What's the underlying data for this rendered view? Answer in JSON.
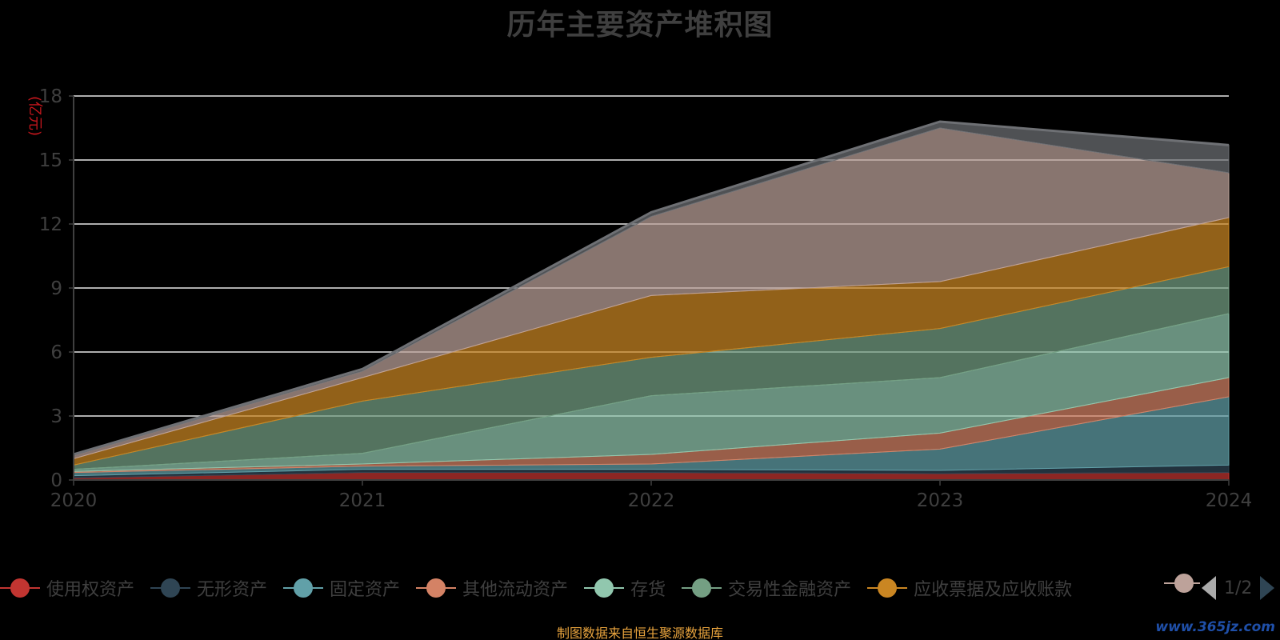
{
  "chart_data": {
    "type": "area",
    "stacked": true,
    "title": "历年主要资产堆积图",
    "ylabel": "(亿元)",
    "x": [
      "2020",
      "2021",
      "2022",
      "2023",
      "2024"
    ],
    "ylim": [
      0,
      18
    ],
    "yticks": [
      "0",
      "3",
      "6",
      "9",
      "12",
      "15",
      "18"
    ],
    "grid": true,
    "legend_position": "bottom",
    "series": [
      {
        "name": "使用权资产",
        "color": "#c23531",
        "values": [
          0.1,
          0.35,
          0.35,
          0.3,
          0.35
        ]
      },
      {
        "name": "无形资产",
        "color": "#2f4554",
        "values": [
          0.1,
          0.15,
          0.15,
          0.15,
          0.35
        ]
      },
      {
        "name": "固定资产",
        "color": "#61a0a8",
        "values": [
          0.15,
          0.15,
          0.25,
          1.0,
          3.2
        ]
      },
      {
        "name": "其他流动资产",
        "color": "#d48265",
        "values": [
          0.05,
          0.1,
          0.45,
          0.75,
          0.9
        ]
      },
      {
        "name": "存货",
        "color": "#91c7ae",
        "values": [
          0.1,
          0.5,
          2.75,
          2.6,
          3.0
        ]
      },
      {
        "name": "交易性金融资产",
        "color": "#749f83",
        "values": [
          0.2,
          2.45,
          1.8,
          2.3,
          2.2
        ]
      },
      {
        "name": "应收票据及应收账款",
        "color": "#ca8622",
        "values": [
          0.3,
          1.1,
          2.9,
          2.2,
          2.3
        ]
      },
      {
        "name": "",
        "color": "#bda29a",
        "values": [
          0.15,
          0.3,
          3.7,
          7.2,
          2.1
        ]
      },
      {
        "name": "",
        "color": "#6e7074",
        "values": [
          0.05,
          0.1,
          0.2,
          0.3,
          1.3
        ]
      }
    ]
  },
  "legend": {
    "pager": "1/2"
  },
  "footer": {
    "source": "制图数据来自恒生聚源数据库",
    "watermark": "www.365jz.com"
  }
}
